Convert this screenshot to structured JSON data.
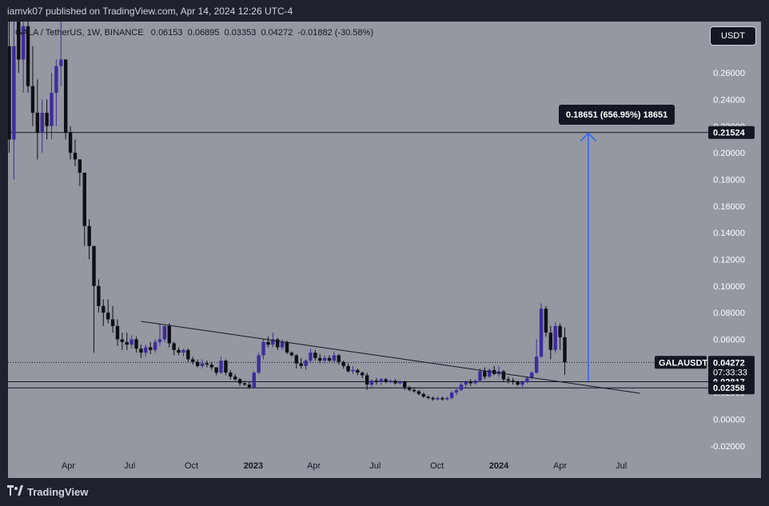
{
  "header": {
    "publisher": "iamvk07 published on TradingView.com, Apr 14, 2024 12:26 UTC-4"
  },
  "legend": {
    "symbol": "GALA / TetherUS, 1W, BINANCE",
    "open": "0.06153",
    "high": "0.06895",
    "low": "0.03353",
    "close": "0.04272",
    "change": "-0.01882 (-30.58%)"
  },
  "currency_button": "USDT",
  "measure_label": "0.18651 (656.95%) 18651",
  "price_tags": [
    {
      "value": "0.21524",
      "style": "dark"
    },
    {
      "value": "0.02817",
      "style": "dark"
    },
    {
      "value": "0.02358",
      "style": "dark"
    }
  ],
  "current_price": {
    "symbol": "GALAUSDT",
    "value": "0.04272",
    "countdown": "07:33:33"
  },
  "footer": {
    "brand": "TradingView"
  },
  "colors": {
    "background": "#9598a1",
    "bull": "#3d2c9e",
    "bear": "#0e0f14",
    "measure": "#2962ff"
  },
  "chart_data": {
    "type": "candlestick",
    "symbol": "GALAUSDT",
    "interval": "1W",
    "y_axis_ticks": [
      "0.26000",
      "0.24000",
      "0.22000",
      "0.20000",
      "0.18000",
      "0.16000",
      "0.14000",
      "0.12000",
      "0.10000",
      "0.08000",
      "0.06000",
      "0.04000",
      "0.02000",
      "0.00000",
      "-0.02000"
    ],
    "x_axis_ticks": [
      "Apr",
      "Jul",
      "Oct",
      "2023",
      "Apr",
      "Jul",
      "Oct",
      "2024",
      "Apr",
      "Jul"
    ],
    "ylim": [
      -0.03,
      0.285
    ],
    "grid": false,
    "horizontal_levels": [
      0.21524,
      0.02817,
      0.02358
    ],
    "trendline": {
      "from": [
        "2022-07-18",
        0.0735
      ],
      "to": [
        "2024-07-29",
        0.0195
      ]
    },
    "measure": {
      "from": [
        "2024-05-13",
        0.0287
      ],
      "to": [
        "2024-05-13",
        0.2152
      ],
      "label": "0.18651 (656.95%) 18651"
    },
    "candles": [
      {
        "date": "2022-01-03",
        "open": 0.28,
        "high": 0.34,
        "low": 0.2,
        "close": 0.21
      },
      {
        "date": "2022-01-10",
        "open": 0.21,
        "high": 0.3,
        "low": 0.18,
        "close": 0.28
      },
      {
        "date": "2022-01-17",
        "open": 0.31,
        "high": 0.35,
        "low": 0.26,
        "close": 0.27
      },
      {
        "date": "2022-01-24",
        "open": 0.27,
        "high": 0.3,
        "low": 0.245,
        "close": 0.295
      },
      {
        "date": "2022-01-31",
        "open": 0.295,
        "high": 0.32,
        "low": 0.245,
        "close": 0.25
      },
      {
        "date": "2022-02-07",
        "open": 0.25,
        "high": 0.28,
        "low": 0.22,
        "close": 0.23
      },
      {
        "date": "2022-02-14",
        "open": 0.23,
        "high": 0.255,
        "low": 0.195,
        "close": 0.215
      },
      {
        "date": "2022-02-21",
        "open": 0.215,
        "high": 0.24,
        "low": 0.2,
        "close": 0.23
      },
      {
        "date": "2022-02-28",
        "open": 0.23,
        "high": 0.24,
        "low": 0.21,
        "close": 0.22
      },
      {
        "date": "2022-03-07",
        "open": 0.22,
        "high": 0.26,
        "low": 0.21,
        "close": 0.245
      },
      {
        "date": "2022-03-14",
        "open": 0.245,
        "high": 0.27,
        "low": 0.22,
        "close": 0.265
      },
      {
        "date": "2022-03-21",
        "open": 0.265,
        "high": 0.3,
        "low": 0.25,
        "close": 0.27
      },
      {
        "date": "2022-03-28",
        "open": 0.27,
        "high": 0.27,
        "low": 0.21,
        "close": 0.215
      },
      {
        "date": "2022-04-04",
        "open": 0.215,
        "high": 0.22,
        "low": 0.195,
        "close": 0.2
      },
      {
        "date": "2022-04-11",
        "open": 0.2,
        "high": 0.21,
        "low": 0.19,
        "close": 0.195
      },
      {
        "date": "2022-04-18",
        "open": 0.195,
        "high": 0.195,
        "low": 0.175,
        "close": 0.185
      },
      {
        "date": "2022-04-25",
        "open": 0.185,
        "high": 0.185,
        "low": 0.13,
        "close": 0.145
      },
      {
        "date": "2022-05-02",
        "open": 0.145,
        "high": 0.15,
        "low": 0.12,
        "close": 0.13
      },
      {
        "date": "2022-05-09",
        "open": 0.13,
        "high": 0.13,
        "low": 0.05,
        "close": 0.1
      },
      {
        "date": "2022-05-16",
        "open": 0.1,
        "high": 0.105,
        "low": 0.08,
        "close": 0.085
      },
      {
        "date": "2022-05-23",
        "open": 0.085,
        "high": 0.09,
        "low": 0.07,
        "close": 0.08
      },
      {
        "date": "2022-05-30",
        "open": 0.08,
        "high": 0.09,
        "low": 0.072,
        "close": 0.075
      },
      {
        "date": "2022-06-06",
        "open": 0.075,
        "high": 0.085,
        "low": 0.065,
        "close": 0.07
      },
      {
        "date": "2022-06-13",
        "open": 0.07,
        "high": 0.075,
        "low": 0.055,
        "close": 0.06
      },
      {
        "date": "2022-06-20",
        "open": 0.06,
        "high": 0.065,
        "low": 0.052,
        "close": 0.058
      },
      {
        "date": "2022-06-27",
        "open": 0.058,
        "high": 0.065,
        "low": 0.052,
        "close": 0.056
      },
      {
        "date": "2022-07-04",
        "open": 0.056,
        "high": 0.063,
        "low": 0.053,
        "close": 0.06
      },
      {
        "date": "2022-07-11",
        "open": 0.06,
        "high": 0.062,
        "low": 0.05,
        "close": 0.053
      },
      {
        "date": "2022-07-18",
        "open": 0.053,
        "high": 0.056,
        "low": 0.046,
        "close": 0.05
      },
      {
        "date": "2022-07-25",
        "open": 0.05,
        "high": 0.056,
        "low": 0.047,
        "close": 0.054
      },
      {
        "date": "2022-08-01",
        "open": 0.054,
        "high": 0.058,
        "low": 0.049,
        "close": 0.052
      },
      {
        "date": "2022-08-08",
        "open": 0.052,
        "high": 0.06,
        "low": 0.05,
        "close": 0.058
      },
      {
        "date": "2022-08-15",
        "open": 0.058,
        "high": 0.072,
        "low": 0.055,
        "close": 0.06
      },
      {
        "date": "2022-08-22",
        "open": 0.06,
        "high": 0.07,
        "low": 0.058,
        "close": 0.07
      },
      {
        "date": "2022-08-29",
        "open": 0.07,
        "high": 0.072,
        "low": 0.054,
        "close": 0.057
      },
      {
        "date": "2022-09-05",
        "open": 0.057,
        "high": 0.058,
        "low": 0.048,
        "close": 0.052
      },
      {
        "date": "2022-09-12",
        "open": 0.052,
        "high": 0.054,
        "low": 0.048,
        "close": 0.05
      },
      {
        "date": "2022-09-19",
        "open": 0.05,
        "high": 0.053,
        "low": 0.047,
        "close": 0.052
      },
      {
        "date": "2022-09-26",
        "open": 0.052,
        "high": 0.053,
        "low": 0.043,
        "close": 0.045
      },
      {
        "date": "2022-10-03",
        "open": 0.045,
        "high": 0.047,
        "low": 0.041,
        "close": 0.043
      },
      {
        "date": "2022-10-10",
        "open": 0.043,
        "high": 0.045,
        "low": 0.039,
        "close": 0.04
      },
      {
        "date": "2022-10-17",
        "open": 0.04,
        "high": 0.045,
        "low": 0.038,
        "close": 0.042
      },
      {
        "date": "2022-10-24",
        "open": 0.042,
        "high": 0.044,
        "low": 0.039,
        "close": 0.041
      },
      {
        "date": "2022-10-31",
        "open": 0.041,
        "high": 0.043,
        "low": 0.037,
        "close": 0.039
      },
      {
        "date": "2022-11-07",
        "open": 0.039,
        "high": 0.039,
        "low": 0.033,
        "close": 0.035
      },
      {
        "date": "2022-11-14",
        "open": 0.035,
        "high": 0.047,
        "low": 0.034,
        "close": 0.044
      },
      {
        "date": "2022-11-21",
        "open": 0.044,
        "high": 0.045,
        "low": 0.033,
        "close": 0.035
      },
      {
        "date": "2022-11-28",
        "open": 0.035,
        "high": 0.037,
        "low": 0.03,
        "close": 0.032
      },
      {
        "date": "2022-12-05",
        "open": 0.032,
        "high": 0.034,
        "low": 0.029,
        "close": 0.03
      },
      {
        "date": "2022-12-12",
        "open": 0.03,
        "high": 0.031,
        "low": 0.025,
        "close": 0.027
      },
      {
        "date": "2022-12-19",
        "open": 0.027,
        "high": 0.029,
        "low": 0.025,
        "close": 0.026
      },
      {
        "date": "2022-12-26",
        "open": 0.026,
        "high": 0.028,
        "low": 0.023,
        "close": 0.024
      },
      {
        "date": "2023-01-02",
        "open": 0.024,
        "high": 0.036,
        "low": 0.023,
        "close": 0.035
      },
      {
        "date": "2023-01-09",
        "open": 0.035,
        "high": 0.05,
        "low": 0.034,
        "close": 0.048
      },
      {
        "date": "2023-01-16",
        "open": 0.048,
        "high": 0.06,
        "low": 0.045,
        "close": 0.058
      },
      {
        "date": "2023-01-23",
        "open": 0.058,
        "high": 0.062,
        "low": 0.054,
        "close": 0.056
      },
      {
        "date": "2023-01-30",
        "open": 0.056,
        "high": 0.065,
        "low": 0.054,
        "close": 0.06
      },
      {
        "date": "2023-02-06",
        "open": 0.06,
        "high": 0.061,
        "low": 0.052,
        "close": 0.054
      },
      {
        "date": "2023-02-13",
        "open": 0.054,
        "high": 0.06,
        "low": 0.052,
        "close": 0.058
      },
      {
        "date": "2023-02-20",
        "open": 0.058,
        "high": 0.059,
        "low": 0.049,
        "close": 0.05
      },
      {
        "date": "2023-02-27",
        "open": 0.05,
        "high": 0.051,
        "low": 0.047,
        "close": 0.048
      },
      {
        "date": "2023-03-06",
        "open": 0.048,
        "high": 0.049,
        "low": 0.038,
        "close": 0.042
      },
      {
        "date": "2023-03-13",
        "open": 0.042,
        "high": 0.046,
        "low": 0.038,
        "close": 0.04
      },
      {
        "date": "2023-03-20",
        "open": 0.04,
        "high": 0.045,
        "low": 0.037,
        "close": 0.044
      },
      {
        "date": "2023-03-27",
        "open": 0.044,
        "high": 0.053,
        "low": 0.042,
        "close": 0.05
      },
      {
        "date": "2023-04-03",
        "open": 0.05,
        "high": 0.052,
        "low": 0.044,
        "close": 0.046
      },
      {
        "date": "2023-04-10",
        "open": 0.046,
        "high": 0.049,
        "low": 0.042,
        "close": 0.044
      },
      {
        "date": "2023-04-17",
        "open": 0.044,
        "high": 0.048,
        "low": 0.042,
        "close": 0.046
      },
      {
        "date": "2023-04-24",
        "open": 0.046,
        "high": 0.048,
        "low": 0.043,
        "close": 0.044
      },
      {
        "date": "2023-05-01",
        "open": 0.044,
        "high": 0.051,
        "low": 0.042,
        "close": 0.048
      },
      {
        "date": "2023-05-08",
        "open": 0.048,
        "high": 0.049,
        "low": 0.041,
        "close": 0.043
      },
      {
        "date": "2023-05-15",
        "open": 0.043,
        "high": 0.044,
        "low": 0.038,
        "close": 0.04
      },
      {
        "date": "2023-05-22",
        "open": 0.04,
        "high": 0.042,
        "low": 0.035,
        "close": 0.036
      },
      {
        "date": "2023-05-29",
        "open": 0.036,
        "high": 0.04,
        "low": 0.034,
        "close": 0.037
      },
      {
        "date": "2023-06-05",
        "open": 0.037,
        "high": 0.038,
        "low": 0.033,
        "close": 0.035
      },
      {
        "date": "2023-06-12",
        "open": 0.035,
        "high": 0.036,
        "low": 0.031,
        "close": 0.033
      },
      {
        "date": "2023-06-19",
        "open": 0.033,
        "high": 0.035,
        "low": 0.022,
        "close": 0.026
      },
      {
        "date": "2023-06-26",
        "open": 0.026,
        "high": 0.03,
        "low": 0.024,
        "close": 0.029
      },
      {
        "date": "2023-07-03",
        "open": 0.029,
        "high": 0.031,
        "low": 0.026,
        "close": 0.028
      },
      {
        "date": "2023-07-10",
        "open": 0.028,
        "high": 0.031,
        "low": 0.026,
        "close": 0.03
      },
      {
        "date": "2023-07-17",
        "open": 0.03,
        "high": 0.031,
        "low": 0.027,
        "close": 0.028
      },
      {
        "date": "2023-07-24",
        "open": 0.028,
        "high": 0.03,
        "low": 0.027,
        "close": 0.029
      },
      {
        "date": "2023-07-31",
        "open": 0.029,
        "high": 0.03,
        "low": 0.026,
        "close": 0.027
      },
      {
        "date": "2023-08-07",
        "open": 0.027,
        "high": 0.029,
        "low": 0.026,
        "close": 0.028
      },
      {
        "date": "2023-08-14",
        "open": 0.028,
        "high": 0.029,
        "low": 0.022,
        "close": 0.024
      },
      {
        "date": "2023-08-21",
        "open": 0.024,
        "high": 0.025,
        "low": 0.021,
        "close": 0.022
      },
      {
        "date": "2023-08-28",
        "open": 0.022,
        "high": 0.024,
        "low": 0.02,
        "close": 0.021
      },
      {
        "date": "2023-09-04",
        "open": 0.021,
        "high": 0.022,
        "low": 0.018,
        "close": 0.019
      },
      {
        "date": "2023-09-11",
        "open": 0.019,
        "high": 0.02,
        "low": 0.016,
        "close": 0.017
      },
      {
        "date": "2023-09-18",
        "open": 0.017,
        "high": 0.018,
        "low": 0.015,
        "close": 0.016
      },
      {
        "date": "2023-09-25",
        "open": 0.016,
        "high": 0.017,
        "low": 0.014,
        "close": 0.015
      },
      {
        "date": "2023-10-02",
        "open": 0.015,
        "high": 0.017,
        "low": 0.014,
        "close": 0.016
      },
      {
        "date": "2023-10-09",
        "open": 0.016,
        "high": 0.017,
        "low": 0.014,
        "close": 0.015
      },
      {
        "date": "2023-10-16",
        "open": 0.015,
        "high": 0.017,
        "low": 0.014,
        "close": 0.016
      },
      {
        "date": "2023-10-23",
        "open": 0.016,
        "high": 0.021,
        "low": 0.015,
        "close": 0.02
      },
      {
        "date": "2023-10-30",
        "open": 0.02,
        "high": 0.024,
        "low": 0.018,
        "close": 0.022
      },
      {
        "date": "2023-11-06",
        "open": 0.022,
        "high": 0.028,
        "low": 0.021,
        "close": 0.026
      },
      {
        "date": "2023-11-13",
        "open": 0.026,
        "high": 0.029,
        "low": 0.024,
        "close": 0.028
      },
      {
        "date": "2023-11-20",
        "open": 0.028,
        "high": 0.03,
        "low": 0.025,
        "close": 0.027
      },
      {
        "date": "2023-11-27",
        "open": 0.027,
        "high": 0.03,
        "low": 0.026,
        "close": 0.029
      },
      {
        "date": "2023-12-04",
        "open": 0.029,
        "high": 0.038,
        "low": 0.028,
        "close": 0.036
      },
      {
        "date": "2023-12-11",
        "open": 0.036,
        "high": 0.039,
        "low": 0.03,
        "close": 0.032
      },
      {
        "date": "2023-12-18",
        "open": 0.032,
        "high": 0.038,
        "low": 0.031,
        "close": 0.037
      },
      {
        "date": "2023-12-25",
        "open": 0.037,
        "high": 0.04,
        "low": 0.033,
        "close": 0.034
      },
      {
        "date": "2024-01-01",
        "open": 0.034,
        "high": 0.04,
        "low": 0.032,
        "close": 0.036
      },
      {
        "date": "2024-01-08",
        "open": 0.036,
        "high": 0.037,
        "low": 0.028,
        "close": 0.03
      },
      {
        "date": "2024-01-15",
        "open": 0.03,
        "high": 0.032,
        "low": 0.027,
        "close": 0.029
      },
      {
        "date": "2024-01-22",
        "open": 0.029,
        "high": 0.031,
        "low": 0.026,
        "close": 0.028
      },
      {
        "date": "2024-01-29",
        "open": 0.028,
        "high": 0.029,
        "low": 0.025,
        "close": 0.026
      },
      {
        "date": "2024-02-05",
        "open": 0.026,
        "high": 0.029,
        "low": 0.024,
        "close": 0.028
      },
      {
        "date": "2024-02-12",
        "open": 0.028,
        "high": 0.032,
        "low": 0.027,
        "close": 0.031
      },
      {
        "date": "2024-02-19",
        "open": 0.031,
        "high": 0.036,
        "low": 0.03,
        "close": 0.035
      },
      {
        "date": "2024-02-26",
        "open": 0.035,
        "high": 0.06,
        "low": 0.034,
        "close": 0.047
      },
      {
        "date": "2024-03-04",
        "open": 0.047,
        "high": 0.087,
        "low": 0.046,
        "close": 0.083
      },
      {
        "date": "2024-03-11",
        "open": 0.083,
        "high": 0.085,
        "low": 0.062,
        "close": 0.065
      },
      {
        "date": "2024-03-18",
        "open": 0.065,
        "high": 0.07,
        "low": 0.045,
        "close": 0.052
      },
      {
        "date": "2024-03-25",
        "open": 0.052,
        "high": 0.073,
        "low": 0.05,
        "close": 0.07
      },
      {
        "date": "2024-04-01",
        "open": 0.07,
        "high": 0.072,
        "low": 0.052,
        "close": 0.0615
      },
      {
        "date": "2024-04-08",
        "open": 0.0615,
        "high": 0.069,
        "low": 0.0335,
        "close": 0.0427
      }
    ]
  }
}
